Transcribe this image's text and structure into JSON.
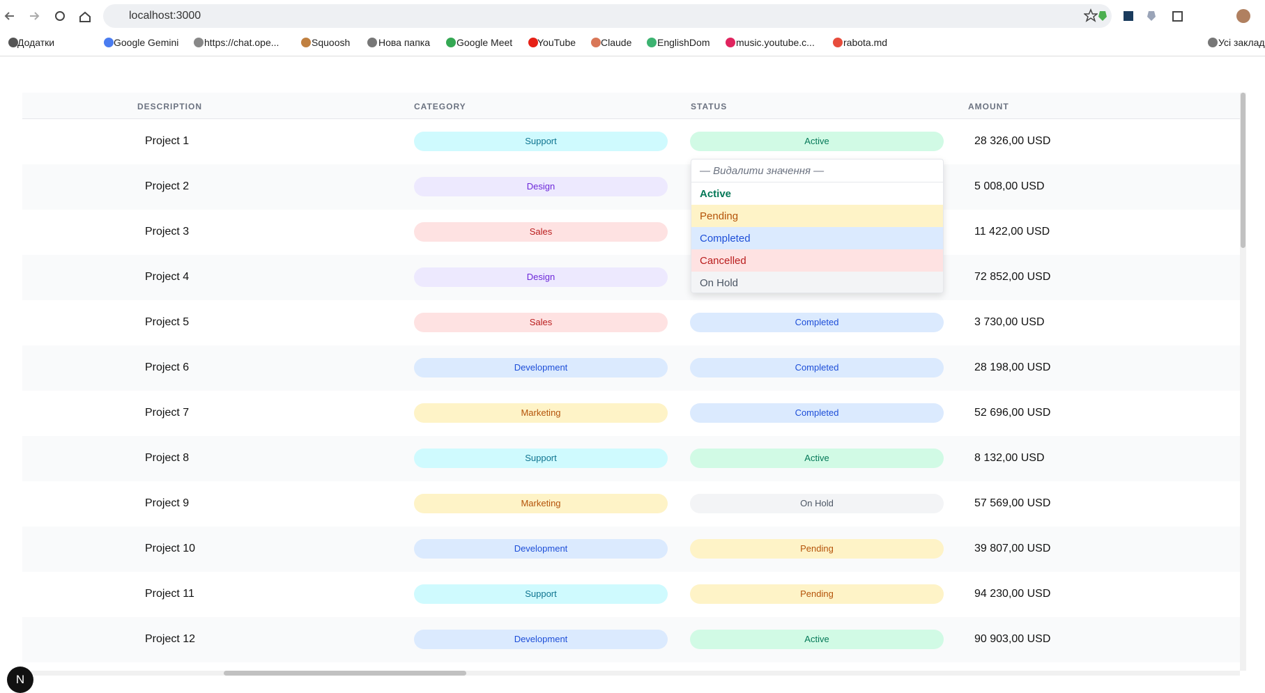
{
  "browser": {
    "address": "localhost:3000",
    "bookmarks": [
      "Додатки",
      "Google Gemini",
      "https://chat.ope...",
      "Squoosh",
      "Нова папка",
      "Google Meet",
      "YouTube",
      "Claude",
      "EnglishDom",
      "music.youtube.c...",
      "rabota.md",
      "Усі заклад"
    ]
  },
  "table": {
    "headers": [
      "DESCRIPTION",
      "CATEGORY",
      "STATUS",
      "AMOUNT"
    ],
    "rows": [
      {
        "description": "Project 1",
        "category": "Support",
        "status": "Active",
        "amount": "28 326,00 USD"
      },
      {
        "description": "Project 2",
        "category": "Design",
        "amount": "5 008,00 USD"
      },
      {
        "description": "Project 3",
        "category": "Sales",
        "amount": "11 422,00 USD"
      },
      {
        "description": "Project 4",
        "category": "Design",
        "amount": "72 852,00 USD"
      },
      {
        "description": "Project 5",
        "category": "Sales",
        "status": "Completed",
        "amount": "3 730,00 USD"
      },
      {
        "description": "Project 6",
        "category": "Development",
        "status": "Completed",
        "amount": "28 198,00 USD"
      },
      {
        "description": "Project 7",
        "category": "Marketing",
        "status": "Completed",
        "amount": "52 696,00 USD"
      },
      {
        "description": "Project 8",
        "category": "Support",
        "status": "Active",
        "amount": "8 132,00 USD"
      },
      {
        "description": "Project 9",
        "category": "Marketing",
        "status": "On Hold",
        "amount": "57 569,00 USD"
      },
      {
        "description": "Project 10",
        "category": "Development",
        "status": "Pending",
        "amount": "39 807,00 USD"
      },
      {
        "description": "Project 11",
        "category": "Support",
        "status": "Pending",
        "amount": "94 230,00 USD"
      },
      {
        "description": "Project 12",
        "category": "Development",
        "status": "Active",
        "amount": "90 903,00 USD"
      }
    ]
  },
  "tag_colors": {
    "Support": [
      "#cffafe",
      "#0e7490"
    ],
    "Design": [
      "#ede9fe",
      "#6d28d9"
    ],
    "Sales": [
      "#fee2e2",
      "#b91c1c"
    ],
    "Development": [
      "#dbeafe",
      "#1d4ed8"
    ],
    "Marketing": [
      "#fef3c7",
      "#b45309"
    ],
    "Active": [
      "#d1fae5",
      "#047857"
    ],
    "Completed": [
      "#dbeafe",
      "#1d4ed8"
    ],
    "On Hold": [
      "#f3f4f6",
      "#4b5563"
    ],
    "Pending": [
      "#fef3c7",
      "#b45309"
    ],
    "Cancelled": [
      "#fee2e2",
      "#b91c1c"
    ]
  },
  "dropdown": {
    "clear": "— Видалити значення —",
    "options": [
      "Active",
      "Pending",
      "Completed",
      "Cancelled",
      "On Hold"
    ]
  },
  "dev_indicator": "N"
}
